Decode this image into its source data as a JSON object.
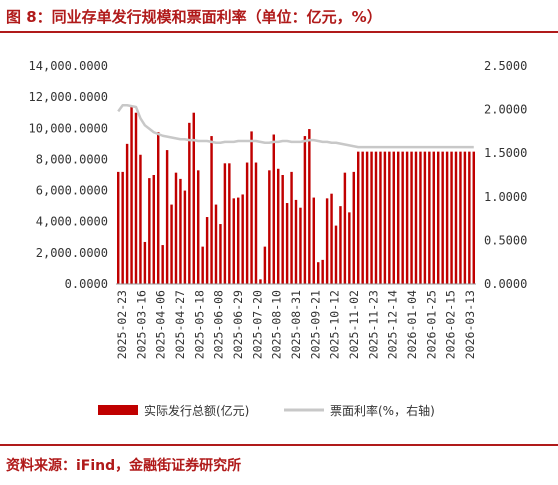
{
  "header": {
    "title": "图 8：同业存单发行规模和票面利率（单位：亿元，%）"
  },
  "footer": {
    "source": "资料来源：iFind，金融街证券研究所"
  },
  "colors": {
    "accent": "#b01a1a",
    "bar": "#c00000",
    "line": "#c8c8c8"
  },
  "chart_data": {
    "type": "bar",
    "x": [
      "2025-02-23",
      "2025-02-27",
      "2025-03-05",
      "2025-03-09",
      "2025-03-13",
      "2025-03-17",
      "2025-03-21",
      "2025-03-25",
      "2025-03-29",
      "2025-04-02",
      "2025-04-06",
      "2025-04-10",
      "2025-04-14",
      "2025-04-18",
      "2025-04-22",
      "2025-04-26",
      "2025-04-30",
      "2025-05-04",
      "2025-05-08",
      "2025-05-12",
      "2025-05-16",
      "2025-05-20",
      "2025-05-24",
      "2025-05-28",
      "2025-06-01",
      "2025-06-05",
      "2025-06-09",
      "2025-06-13",
      "2025-06-17",
      "2025-06-21",
      "2025-06-25",
      "2025-06-29",
      "2025-07-03",
      "2025-07-07",
      "2025-07-11",
      "2025-07-15",
      "2025-07-19",
      "2025-07-23",
      "2025-07-27",
      "2025-07-31",
      "2025-08-04",
      "2025-08-08",
      "2025-08-12",
      "2025-08-16",
      "2025-08-20",
      "2025-08-24",
      "2025-08-28",
      "2025-09-01",
      "2025-09-05",
      "2025-09-09",
      "2025-09-13",
      "2025-09-17",
      "2025-09-21",
      "2025-09-25",
      "2025-09-29",
      "2025-10-03",
      "2025-10-07",
      "2025-10-11",
      "2025-10-15",
      "2025-10-19",
      "2025-10-23",
      "2025-10-27",
      "2025-10-31",
      "2025-11-04",
      "2025-11-08",
      "2025-11-12",
      "2025-11-16",
      "2025-11-20",
      "2025-11-24",
      "2025-11-28",
      "2025-12-02",
      "2025-12-06",
      "2025-12-10",
      "2025-12-14",
      "2025-12-18",
      "2025-12-22",
      "2025-12-26",
      "2025-12-30",
      "2026-01-03",
      "2026-01-07",
      "2026-01-11"
    ],
    "x_tick_labels": [
      "2025-02-23",
      "2025-03-16",
      "2025-04-06",
      "2025-04-27",
      "2025-05-18",
      "2025-06-08",
      "2025-06-29",
      "2025-07-20",
      "2025-08-10",
      "2025-08-31",
      "2025-09-21",
      "2025-10-12",
      "2025-11-02",
      "2025-11-23",
      "2025-12-14",
      "2026-01-04",
      "2026-01-25",
      "2026-02-15",
      "2026-03-13"
    ],
    "series": [
      {
        "name": "实际发行总额(亿元)",
        "type": "bar",
        "axis": "left",
        "values": [
          7200,
          7200,
          9000,
          11400,
          11000,
          8300,
          2700,
          6800,
          7000,
          9750,
          2500,
          8600,
          5100,
          7150,
          6750,
          6000,
          10350,
          11000,
          7300,
          2400,
          4300,
          9500,
          5100,
          3850,
          7750,
          7750,
          5500,
          5550,
          5750,
          7800,
          9800,
          7800,
          300,
          2400,
          7300,
          9600,
          7400,
          7000,
          5200,
          7200,
          5400,
          4900,
          9500,
          9950,
          5550,
          1400,
          1550,
          5500,
          5800,
          3750,
          5000,
          7150,
          4600,
          7200,
          8500,
          8500,
          8500,
          8500,
          8500,
          8500,
          8500,
          8500,
          8500,
          8500,
          8500,
          8500,
          8500,
          8500,
          8500,
          8500,
          8500,
          8500,
          8500,
          8500,
          8500,
          8500,
          8500,
          8500,
          8500,
          8500,
          8500
        ]
      },
      {
        "name": "票面利率(%，右轴)",
        "type": "line",
        "axis": "right",
        "values": [
          1.98,
          2.05,
          2.05,
          2.04,
          2.03,
          1.9,
          1.82,
          1.78,
          1.74,
          1.72,
          1.7,
          1.69,
          1.68,
          1.67,
          1.66,
          1.66,
          1.65,
          1.65,
          1.64,
          1.64,
          1.64,
          1.63,
          1.62,
          1.62,
          1.63,
          1.63,
          1.63,
          1.64,
          1.64,
          1.64,
          1.64,
          1.64,
          1.63,
          1.62,
          1.62,
          1.63,
          1.63,
          1.64,
          1.64,
          1.63,
          1.63,
          1.63,
          1.64,
          1.65,
          1.65,
          1.64,
          1.63,
          1.63,
          1.62,
          1.62,
          1.61,
          1.6,
          1.59,
          1.58,
          1.57,
          1.57,
          1.57,
          1.57,
          1.57,
          1.57,
          1.57,
          1.57,
          1.57,
          1.57,
          1.57,
          1.57,
          1.57,
          1.57,
          1.57,
          1.57,
          1.57,
          1.57,
          1.57,
          1.57,
          1.57,
          1.57,
          1.57,
          1.57,
          1.57,
          1.57,
          1.57
        ]
      }
    ],
    "y_left": {
      "ticks": [
        "0.0000",
        "2,000.0000",
        "4,000.0000",
        "6,000.0000",
        "8,000.0000",
        "10,000.0000",
        "12,000.0000",
        "14,000.0000"
      ],
      "min": 0,
      "max": 14000
    },
    "y_right": {
      "ticks": [
        "0.0000",
        "0.5000",
        "1.0000",
        "1.5000",
        "2.0000",
        "2.5000"
      ],
      "min": 0,
      "max": 2.5
    },
    "legend": {
      "placement": "bottom"
    },
    "grid": false
  }
}
